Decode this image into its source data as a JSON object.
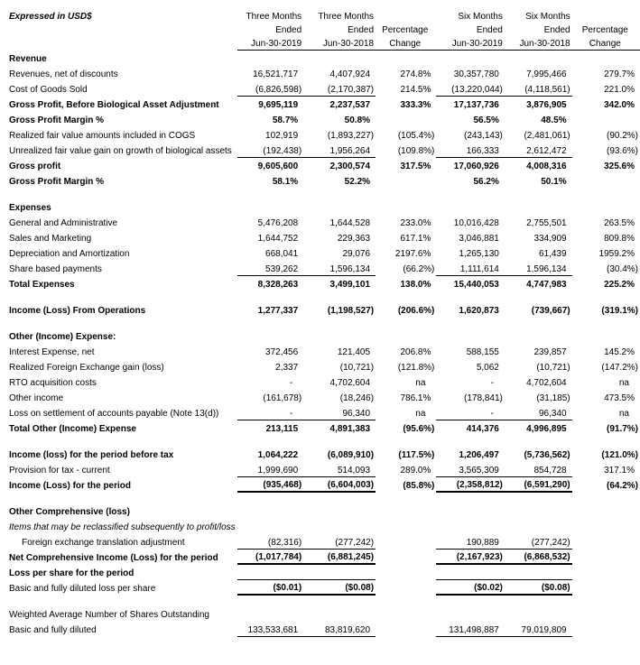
{
  "title": "Expressed in USD$",
  "header": {
    "columns": [
      {
        "lines": [
          "Three Months",
          "Ended",
          "Jun-30-2019"
        ]
      },
      {
        "lines": [
          "Three Months",
          "Ended",
          "Jun-30-2018"
        ]
      },
      {
        "lines": [
          "",
          "Percentage",
          "Change"
        ]
      },
      {
        "lines": [
          "Six Months",
          "Ended",
          "Jun-30-2019"
        ]
      },
      {
        "lines": [
          "Six Months",
          "Ended",
          "Jun-30-2018"
        ]
      },
      {
        "lines": [
          "",
          "Percentage",
          "Change"
        ]
      }
    ]
  },
  "rows": [
    {
      "label": "Revenue",
      "style": "bold"
    },
    {
      "label": "Revenues, net of discounts",
      "values": [
        "16,521,717",
        "4,407,924",
        "274.8%",
        "30,357,780",
        "7,995,466",
        "279.7%"
      ]
    },
    {
      "label": "Cost of Goods Sold",
      "values": [
        "(6,826,598)",
        "(2,170,387)",
        "214.5%",
        "(13,220,044)",
        "(4,118,561)",
        "221.0%"
      ],
      "line_bottom": "thin"
    },
    {
      "label": "Gross Profit, Before Biological Asset Adjustment",
      "style": "bold",
      "bold_values": true,
      "values": [
        "9,695,119",
        "2,237,537",
        "333.3%",
        "17,137,736",
        "3,876,905",
        "342.0%"
      ]
    },
    {
      "label": "Gross Profit Margin %",
      "style": "bold",
      "bold_values": true,
      "values": [
        "58.7%",
        "50.8%",
        "",
        "56.5%",
        "48.5%",
        ""
      ]
    },
    {
      "label": "Realized fair value amounts included in COGS",
      "values": [
        "102,919",
        "(1,893,227)",
        "(105.4%)",
        "(243,143)",
        "(2,481,061)",
        "(90.2%)"
      ]
    },
    {
      "label": "Unrealized fair value gain on growth of biological assets",
      "values": [
        "(192,438)",
        "1,956,264",
        "(109.8%)",
        "166,333",
        "2,612,472",
        "(93.6%)"
      ],
      "line_bottom": "thin"
    },
    {
      "label": "Gross profit",
      "style": "bold",
      "bold_values": true,
      "values": [
        "9,605,600",
        "2,300,574",
        "317.5%",
        "17,060,926",
        "4,008,316",
        "325.6%"
      ]
    },
    {
      "label": "Gross Profit Margin %",
      "style": "bold",
      "bold_values": true,
      "values": [
        "58.1%",
        "52.2%",
        "",
        "56.2%",
        "50.1%",
        ""
      ]
    },
    {
      "blank": true
    },
    {
      "label": "Expenses",
      "style": "bold"
    },
    {
      "label": "General and Administrative",
      "values": [
        "5,476,208",
        "1,644,528",
        "233.0%",
        "10,016,428",
        "2,755,501",
        "263.5%"
      ]
    },
    {
      "label": "Sales and Marketing",
      "values": [
        "1,644,752",
        "229,363",
        "617.1%",
        "3,046,881",
        "334,909",
        "809.8%"
      ]
    },
    {
      "label": "Depreciation and Amortization",
      "values": [
        "668,041",
        "29,076",
        "2197.6%",
        "1,265,130",
        "61,439",
        "1959.2%"
      ]
    },
    {
      "label": "Share based payments",
      "values": [
        "539,262",
        "1,596,134",
        "(66.2%)",
        "1,111,614",
        "1,596,134",
        "(30.4%)"
      ],
      "line_bottom": "thin"
    },
    {
      "label": "Total Expenses",
      "style": "bold",
      "bold_values": true,
      "values": [
        "8,328,263",
        "3,499,101",
        "138.0%",
        "15,440,053",
        "4,747,983",
        "225.2%"
      ]
    },
    {
      "blank": true
    },
    {
      "label": "Income (Loss) From Operations",
      "style": "bold",
      "bold_values": true,
      "values": [
        "1,277,337",
        "(1,198,527)",
        "(206.6%)",
        "1,620,873",
        "(739,667)",
        "(319.1%)"
      ]
    },
    {
      "blank": true
    },
    {
      "label": "Other (Income) Expense:",
      "style": "bold"
    },
    {
      "label": "Interest Expense, net",
      "values": [
        "372,456",
        "121,405",
        "206.8%",
        "588,155",
        "239,857",
        "145.2%"
      ]
    },
    {
      "label": "Realized Foreign Exchange gain (loss)",
      "values": [
        "2,337",
        "(10,721)",
        "(121.8%)",
        "5,062",
        "(10,721)",
        "(147.2%)"
      ]
    },
    {
      "label": "RTO acquisition costs",
      "values": [
        "-",
        "4,702,604",
        "na",
        "-",
        "4,702,604",
        "na"
      ]
    },
    {
      "label": "Other income",
      "values": [
        "(161,678)",
        "(18,246)",
        "786.1%",
        "(178,841)",
        "(31,185)",
        "473.5%"
      ]
    },
    {
      "label": "Loss on settlement of accounts payable (Note 13(d))",
      "values": [
        "-",
        "96,340",
        "na",
        "-",
        "96,340",
        "na"
      ],
      "line_bottom": "thin"
    },
    {
      "label": "Total Other (Income) Expense",
      "style": "bold",
      "bold_values": true,
      "values": [
        "213,115",
        "4,891,383",
        "(95.6%)",
        "414,376",
        "4,996,895",
        "(91.7%)"
      ]
    },
    {
      "blank": true
    },
    {
      "label": "Income (loss) for the period before tax",
      "style": "bold",
      "bold_values": true,
      "values": [
        "1,064,222",
        "(6,089,910)",
        "(117.5%)",
        "1,206,497",
        "(5,736,562)",
        "(121.0%)"
      ]
    },
    {
      "label": "Provision for tax - current",
      "values": [
        "1,999,690",
        "514,093",
        "289.0%",
        "3,565,309",
        "854,728",
        "317.1%"
      ],
      "line_bottom": "thin"
    },
    {
      "label": "Income (Loss) for the period",
      "style": "bold",
      "bold_values": true,
      "values": [
        "(935,468)",
        "(6,604,003)",
        "(85.8%)",
        "(2,358,812)",
        "(6,591,290)",
        "(64.2%)"
      ],
      "line_bottom": "thick"
    },
    {
      "blank": true
    },
    {
      "label": "Other Comprehensive (loss)",
      "style": "bold"
    },
    {
      "label": "Items that may be reclassified subsequently to profit/loss",
      "style": "italic"
    },
    {
      "label": "Foreign exchange translation adjustment",
      "indent": true,
      "values": [
        "(82,316)",
        "(277,242)",
        "",
        "190,889",
        "(277,242)",
        ""
      ],
      "line_bottom": "thin"
    },
    {
      "label": "Net Comprehensive Income  (Loss) for the period",
      "style": "bold",
      "bold_values": true,
      "values": [
        "(1,017,784)",
        "(6,881,245)",
        "",
        "(2,167,923)",
        "(6,868,532)",
        ""
      ],
      "line_bottom": "thick"
    },
    {
      "label": "Loss per share for the period",
      "style": "bold"
    },
    {
      "label": "Basic and fully diluted loss per share",
      "bold_values": true,
      "values": [
        "($0.01)",
        "($0.08)",
        "",
        "($0.02)",
        "($0.08)",
        ""
      ],
      "line_top": true,
      "line_bottom": "thick"
    },
    {
      "blank": true
    },
    {
      "label": "Weighted Average Number of Shares Outstanding"
    },
    {
      "label": "Basic and fully diluted",
      "values": [
        "133,533,681",
        "83,819,620",
        "",
        "131,498,887",
        "79,019,809",
        ""
      ],
      "line_bottom": "thin"
    }
  ]
}
